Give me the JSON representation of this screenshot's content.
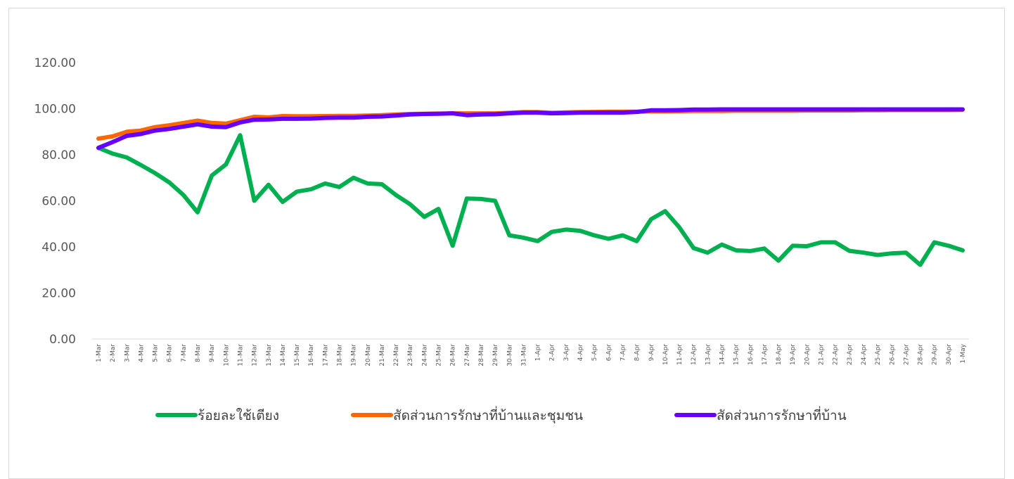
{
  "chart_data": {
    "type": "line",
    "title": "",
    "xlabel": "",
    "ylabel": "",
    "ylim": [
      0,
      120
    ],
    "yticks": [
      "0.00",
      "20.00",
      "40.00",
      "60.00",
      "80.00",
      "100.00",
      "120.00"
    ],
    "grid": false,
    "legend_position": "bottom",
    "categories": [
      "1-Mar",
      "2-Mar",
      "3-Mar",
      "4-Mar",
      "5-Mar",
      "6-Mar",
      "7-Mar",
      "8-Mar",
      "9-Mar",
      "10-Mar",
      "11-Mar",
      "12-Mar",
      "13-Mar",
      "14-Mar",
      "15-Mar",
      "16-Mar",
      "17-Mar",
      "18-Mar",
      "19-Mar",
      "20-Mar",
      "21-Mar",
      "22-Mar",
      "23-Mar",
      "24-Mar",
      "25-Mar",
      "26-Mar",
      "27-Mar",
      "28-Mar",
      "29-Mar",
      "30-Mar",
      "31-Mar",
      "1-Apr",
      "2-Apr",
      "3-Apr",
      "4-Apr",
      "5-Apr",
      "6-Apr",
      "7-Apr",
      "8-Apr",
      "9-Apr",
      "10-Apr",
      "11-Apr",
      "12-Apr",
      "13-Apr",
      "14-Apr",
      "15-Apr",
      "16-Apr",
      "17-Apr",
      "18-Apr",
      "19-Apr",
      "20-Apr",
      "21-Apr",
      "22-Apr",
      "23-Apr",
      "24-Apr",
      "25-Apr",
      "26-Apr",
      "27-Apr",
      "28-Apr",
      "29-Apr",
      "30-Apr",
      "1-May"
    ],
    "series": [
      {
        "name": "ร้อยละใช้เตียง",
        "color": "#00b050",
        "values": [
          83.0,
          80.5,
          78.8,
          75.5,
          72.0,
          68.0,
          62.5,
          55.0,
          71.0,
          75.8,
          88.5,
          60.0,
          67.0,
          59.5,
          64.0,
          65.0,
          67.5,
          66.0,
          70.0,
          67.5,
          67.2,
          62.5,
          58.5,
          53.0,
          56.5,
          40.5,
          61.0,
          60.8,
          60.0,
          45.0,
          44.0,
          42.5,
          46.5,
          47.5,
          47.0,
          45.0,
          43.5,
          45.0,
          42.5,
          52.0,
          55.5,
          48.5,
          39.5,
          37.5,
          41.0,
          38.5,
          38.2,
          39.3,
          34.0,
          40.5,
          40.3,
          42.0,
          42.0,
          38.3,
          37.5,
          36.5,
          37.2,
          37.5,
          32.2,
          42.0,
          40.5,
          38.5
        ]
      },
      {
        "name": "สัดส่วนการรักษาที่บ้านและชุมชน",
        "color": "#ff6600",
        "values": [
          87.0,
          88.0,
          90.0,
          90.5,
          92.0,
          92.8,
          93.8,
          94.8,
          93.8,
          93.5,
          95.0,
          96.5,
          96.2,
          96.8,
          96.7,
          96.7,
          96.8,
          96.9,
          96.9,
          97.0,
          97.2,
          97.5,
          97.7,
          97.8,
          97.9,
          98.0,
          98.0,
          98.0,
          98.0,
          98.2,
          98.5,
          98.5,
          98.2,
          98.4,
          98.5,
          98.6,
          98.7,
          98.7,
          98.7,
          98.8,
          98.8,
          98.9,
          99.0,
          99.0,
          99.0,
          99.1,
          99.1,
          99.1,
          99.1,
          99.1,
          99.2,
          99.2,
          99.2,
          99.2,
          99.3,
          99.3,
          99.4,
          99.4,
          99.4,
          99.4,
          99.4,
          99.5
        ]
      },
      {
        "name": "สัดส่วนการรักษาที่บ้าน",
        "color": "#6600ff",
        "values": [
          83.0,
          85.5,
          88.2,
          89.0,
          90.5,
          91.2,
          92.2,
          93.2,
          92.2,
          92.0,
          94.0,
          95.2,
          95.3,
          95.6,
          95.6,
          95.7,
          96.0,
          96.1,
          96.1,
          96.5,
          96.6,
          97.0,
          97.5,
          97.7,
          97.8,
          98.0,
          97.2,
          97.5,
          97.6,
          98.0,
          98.3,
          98.3,
          98.0,
          98.1,
          98.3,
          98.3,
          98.3,
          98.3,
          98.6,
          99.3,
          99.3,
          99.4,
          99.6,
          99.6,
          99.7,
          99.7,
          99.7,
          99.7,
          99.7,
          99.7,
          99.7,
          99.7,
          99.7,
          99.7,
          99.7,
          99.7,
          99.7,
          99.7,
          99.7,
          99.7,
          99.7,
          99.7
        ]
      }
    ]
  }
}
